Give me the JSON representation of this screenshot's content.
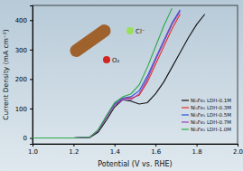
{
  "chart_data": {
    "type": "line",
    "x_label": "Potential (V vs. RHE)",
    "y_label": "Current Density (mA cm⁻²)",
    "annotations": [
      "Cl⁻",
      "O₂"
    ],
    "x": [
      1.0,
      1.2,
      1.28,
      1.32,
      1.36,
      1.4,
      1.44,
      1.48,
      1.52,
      1.56,
      1.6,
      1.64,
      1.68,
      1.72,
      1.76,
      1.8,
      1.84
    ],
    "series": [
      {
        "name": "Ni₃Fe₁ LDH-0.1M",
        "color": "#111111",
        "values": [
          0,
          0,
          2,
          20,
          60,
          105,
          130,
          125,
          115,
          120,
          150,
          190,
          240,
          290,
          340,
          385,
          420
        ]
      },
      {
        "name": "Ni₃Fe₁ LDH-0.3M",
        "color": "#e0302a",
        "values": [
          0,
          0,
          3,
          25,
          70,
          115,
          135,
          135,
          145,
          190,
          250,
          310,
          370,
          420,
          null,
          null,
          null
        ]
      },
      {
        "name": "Ni₃Fe₁ LDH-0.5M",
        "color": "#2a4fd8",
        "values": [
          0,
          0,
          3,
          25,
          70,
          115,
          135,
          140,
          160,
          210,
          270,
          330,
          390,
          435,
          null,
          null,
          null
        ]
      },
      {
        "name": "Ni₃Fe₁ LDH-0.7M",
        "color": "#9a3fb5",
        "values": [
          0,
          0,
          3,
          25,
          70,
          112,
          130,
          130,
          150,
          200,
          265,
          325,
          385,
          430,
          null,
          null,
          null
        ]
      },
      {
        "name": "Ni₃Fe₁ LDH-1.0M",
        "color": "#2fa84a",
        "values": [
          0,
          0,
          3,
          28,
          75,
          120,
          140,
          150,
          180,
          240,
          310,
          380,
          440,
          null,
          null,
          null,
          null
        ]
      }
    ],
    "xlim": [
      1.0,
      2.0
    ],
    "xticks": [
      {
        "value": 1.0,
        "label": "1.0"
      },
      {
        "value": 1.2,
        "label": "1.2"
      },
      {
        "value": 1.4,
        "label": "1.4"
      },
      {
        "value": 1.6,
        "label": "1.6"
      },
      {
        "value": 1.8,
        "label": "1.8"
      },
      {
        "value": 2.0,
        "label": "2.0"
      }
    ],
    "ylim": [
      -20,
      450
    ],
    "yticks": [
      0,
      100,
      200,
      300,
      400
    ],
    "legend": "bottom-right",
    "grid": false
  }
}
